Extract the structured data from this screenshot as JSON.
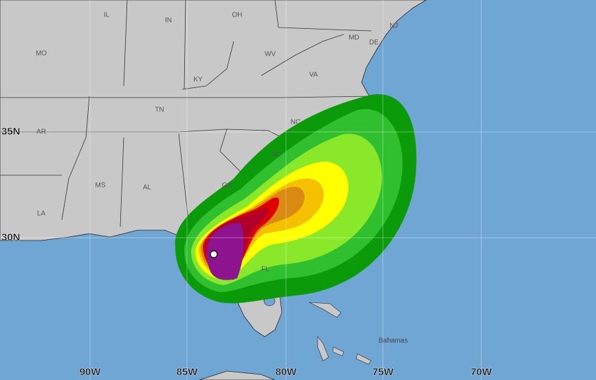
{
  "state_labels": [
    "IL",
    "IN",
    "OH",
    "NJ",
    "MD",
    "DE",
    "MO",
    "WV",
    "KY",
    "VA",
    "NC",
    "TN",
    "AR",
    "SC",
    "MS",
    "AL",
    "GA",
    "LA",
    "FL"
  ],
  "place_labels": [
    "Bahamas"
  ],
  "latitude_labels": [
    "35N",
    "30N"
  ],
  "longitude_labels": [
    "90W",
    "85W",
    "80W",
    "75W",
    "70W"
  ]
}
